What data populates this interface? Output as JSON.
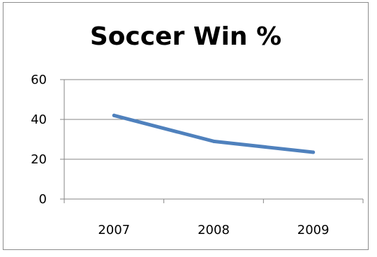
{
  "chart_data": {
    "type": "line",
    "title": "Soccer Win %",
    "categories": [
      "2007",
      "2008",
      "2009"
    ],
    "series": [
      {
        "values": [
          42,
          29,
          23.5
        ],
        "color": "#4f81bd"
      }
    ],
    "ylim": [
      0,
      60
    ],
    "y_ticks": [
      "0",
      "20",
      "40",
      "60"
    ],
    "grid": true,
    "gridline_color": "#868686",
    "legend": "none"
  }
}
